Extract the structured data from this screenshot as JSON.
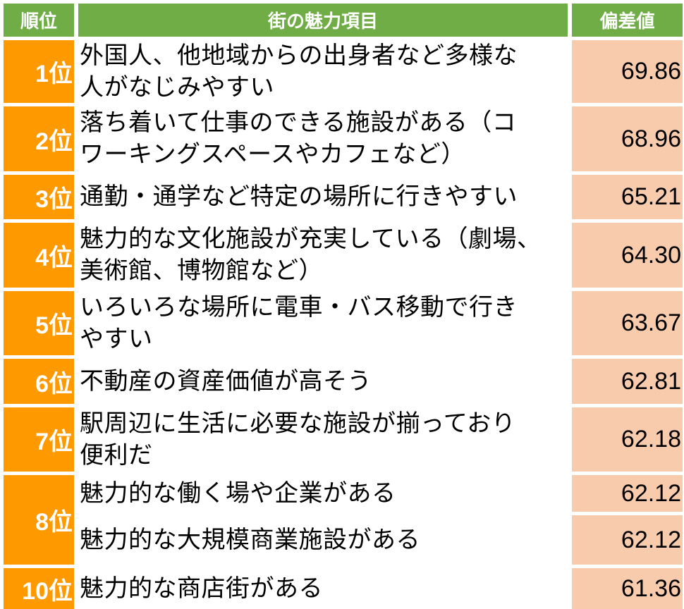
{
  "header": {
    "rank": "順位",
    "item": "街の魅力項目",
    "score": "偏差値"
  },
  "rows": [
    {
      "rank": "1位",
      "item": "外国人、他地域からの出身者など多様な\n人がなじみやすい",
      "score": "69.86"
    },
    {
      "rank": "2位",
      "item": "落ち着いて仕事のできる施設がある（コ\nワーキングスペースやカフェなど）",
      "score": "68.96"
    },
    {
      "rank": "3位",
      "item": "通勤・通学など特定の場所に行きやすい",
      "score": "65.21"
    },
    {
      "rank": "4位",
      "item": "魅力的な文化施設が充実している（劇場、\n美術館、博物館など）",
      "score": "64.30"
    },
    {
      "rank": "5位",
      "item": "いろいろな場所に電車・バス移動で行き\nやすい",
      "score": "63.67"
    },
    {
      "rank": "6位",
      "item": "不動産の資産価値が高そう",
      "score": "62.81"
    },
    {
      "rank": "7位",
      "item": "駅周辺に生活に必要な施設が揃っており\n便利だ",
      "score": "62.18"
    },
    {
      "rank": "8位",
      "item": "魅力的な働く場や企業がある",
      "score": "62.12"
    },
    {
      "rank": "",
      "item": "魅力的な大規模商業施設がある",
      "score": "62.12"
    },
    {
      "rank": "10位",
      "item": "魅力的な商店街がある",
      "score": "61.36"
    }
  ],
  "colors": {
    "header_bg": "#70ad47",
    "rank_bg": "#ff9900",
    "score_bg": "#f8cbad"
  }
}
